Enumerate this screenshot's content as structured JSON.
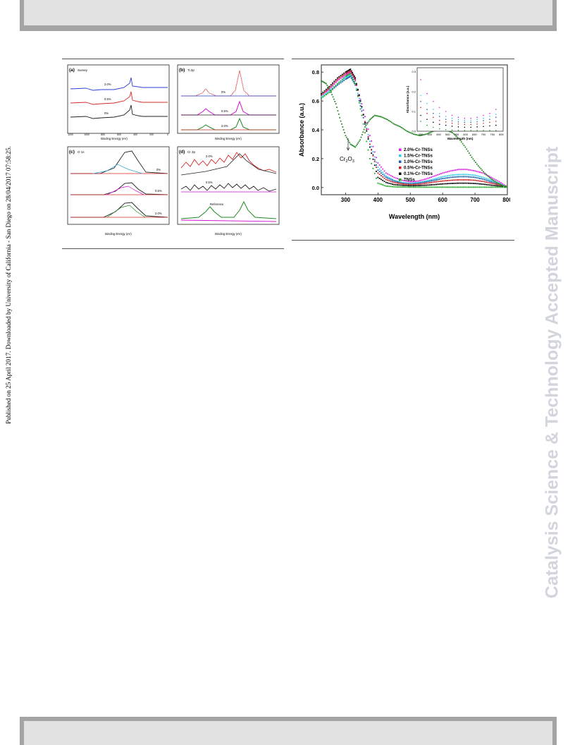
{
  "sidebar_text": "Published on 25 April 2017. Downloaded by University of California - San Diego on 28/04/2017 07:58:25.",
  "watermark": "Catalysis Science & Technology Accepted Manuscript",
  "figure_left": {
    "panel_a": {
      "label": "(a)",
      "title": "Survey",
      "xlabel": "Binding Energy (eV)",
      "ylabel": "Intensity (a.u.)",
      "xticks": [
        "1200",
        "1000",
        "800",
        "600",
        "400",
        "200",
        "0"
      ],
      "curves": [
        "2.0%",
        "0.5%",
        "0%"
      ]
    },
    "panel_b": {
      "label": "(b)",
      "title": "Ti 2p",
      "xlabel": "Binding Energy (eV)",
      "ylabel": "Intensity (a.u.)",
      "xticks": [
        "470",
        "468",
        "466",
        "464",
        "462",
        "460",
        "458",
        "456"
      ],
      "curves": [
        "0%",
        "0.5%",
        "2.0%"
      ]
    },
    "panel_c": {
      "label": "(c)",
      "title": "O 1s",
      "xlabel": "Binding Energy (eV)",
      "ylabel": "Intensity (a.u.)",
      "xticks": [
        "534",
        "533",
        "532",
        "531",
        "530",
        "529",
        "528",
        "527"
      ],
      "curves": [
        "0%",
        "0.5%",
        "2.0%"
      ]
    },
    "panel_d": {
      "label": "(d)",
      "title": "Cr 2p",
      "xlabel": "Binding Energy (eV)",
      "ylabel": "Intensity (a.u.)",
      "xticks": [
        "590",
        "585",
        "580",
        "575",
        "570"
      ],
      "curves": [
        "2.0%",
        "0.5%",
        "Reference"
      ]
    }
  },
  "chart_data": {
    "type": "scatter",
    "xlabel": "Wavelength (nm)",
    "ylabel": "Absorbance (a.u.)",
    "xlim": [
      225,
      800
    ],
    "ylim": [
      -0.05,
      0.85
    ],
    "xticks": [
      300,
      400,
      500,
      600,
      700,
      800
    ],
    "yticks": [
      0.0,
      0.2,
      0.4,
      0.6,
      0.8
    ],
    "annotation": "Cr2O3",
    "legend_position": "center-right",
    "series": [
      {
        "name": "2.0%-Cr-TNSs",
        "color": "#e020e0",
        "x": [
          225,
          250,
          275,
          300,
          315,
          330,
          350,
          375,
          400,
          425,
          450,
          475,
          500,
          525,
          550,
          575,
          600,
          625,
          650,
          675,
          700,
          725,
          750,
          775,
          800
        ],
        "y": [
          0.64,
          0.68,
          0.74,
          0.78,
          0.8,
          0.74,
          0.58,
          0.36,
          0.17,
          0.1,
          0.07,
          0.05,
          0.04,
          0.045,
          0.06,
          0.08,
          0.1,
          0.115,
          0.125,
          0.125,
          0.115,
          0.1,
          0.07,
          0.04,
          0.005
        ]
      },
      {
        "name": "1.5%-Cr-TNSs",
        "color": "#33ccee",
        "x": [
          225,
          250,
          275,
          300,
          315,
          330,
          350,
          375,
          400,
          425,
          450,
          475,
          500,
          525,
          550,
          575,
          600,
          625,
          650,
          675,
          700,
          725,
          750,
          775,
          800
        ],
        "y": [
          0.63,
          0.67,
          0.72,
          0.76,
          0.78,
          0.72,
          0.55,
          0.32,
          0.14,
          0.08,
          0.05,
          0.035,
          0.03,
          0.035,
          0.045,
          0.06,
          0.075,
          0.085,
          0.09,
          0.09,
          0.085,
          0.07,
          0.05,
          0.03,
          0.0
        ]
      },
      {
        "name": "1.0%-Cr-TNSs",
        "color": "#1a5fa8",
        "x": [
          225,
          250,
          275,
          300,
          315,
          330,
          350,
          375,
          400,
          425,
          450,
          475,
          500,
          525,
          550,
          575,
          600,
          625,
          650,
          675,
          700,
          725,
          750,
          775,
          800
        ],
        "y": [
          0.62,
          0.66,
          0.71,
          0.75,
          0.77,
          0.71,
          0.53,
          0.3,
          0.12,
          0.07,
          0.045,
          0.03,
          0.025,
          0.03,
          0.04,
          0.05,
          0.062,
          0.07,
          0.075,
          0.075,
          0.07,
          0.058,
          0.04,
          0.022,
          0.0
        ]
      },
      {
        "name": "0.5%-Cr-TNSs",
        "color": "#cc2222",
        "x": [
          225,
          250,
          275,
          300,
          315,
          330,
          350,
          375,
          400,
          425,
          450,
          475,
          500,
          525,
          550,
          575,
          600,
          625,
          650,
          675,
          700,
          725,
          750,
          775,
          800
        ],
        "y": [
          0.64,
          0.69,
          0.75,
          0.79,
          0.81,
          0.75,
          0.56,
          0.3,
          0.1,
          0.055,
          0.035,
          0.025,
          0.02,
          0.022,
          0.03,
          0.038,
          0.045,
          0.05,
          0.053,
          0.053,
          0.05,
          0.042,
          0.03,
          0.018,
          0.0
        ]
      },
      {
        "name": "0.1%-Cr-TNSs",
        "color": "#000000",
        "x": [
          225,
          250,
          275,
          300,
          315,
          330,
          350,
          375,
          400,
          425,
          450,
          475,
          500,
          525,
          550,
          575,
          600,
          625,
          650,
          675,
          700,
          725,
          750,
          775,
          800
        ],
        "y": [
          0.65,
          0.7,
          0.76,
          0.8,
          0.82,
          0.76,
          0.56,
          0.28,
          0.07,
          0.035,
          0.02,
          0.015,
          0.012,
          0.013,
          0.016,
          0.02,
          0.025,
          0.028,
          0.03,
          0.03,
          0.028,
          0.023,
          0.016,
          0.01,
          0.0
        ]
      },
      {
        "name": "TNSs",
        "color": "#22aa22",
        "x": [
          225,
          250,
          275,
          300,
          315,
          330,
          350,
          375,
          400,
          425,
          450,
          475,
          500,
          525,
          550,
          575,
          600,
          625,
          650,
          675,
          700,
          725,
          750,
          775,
          800
        ],
        "y": [
          0.62,
          0.66,
          0.72,
          0.77,
          0.79,
          0.72,
          0.5,
          0.2,
          0.03,
          0.01,
          0.005,
          0.003,
          0.002,
          0.002,
          0.002,
          0.002,
          0.002,
          0.002,
          0.002,
          0.002,
          0.002,
          0.002,
          0.002,
          0.002,
          0.002
        ]
      },
      {
        "name": "",
        "color": "#2e8b2e",
        "x": [
          225,
          240,
          255,
          270,
          285,
          300,
          315,
          330,
          345,
          360,
          375,
          390,
          410,
          430,
          450,
          470,
          490,
          510,
          530,
          550,
          570,
          590,
          610,
          630,
          650,
          670,
          690,
          710,
          730,
          750,
          770,
          790,
          800
        ],
        "y": [
          0.74,
          0.72,
          0.66,
          0.58,
          0.46,
          0.36,
          0.3,
          0.28,
          0.33,
          0.42,
          0.47,
          0.5,
          0.49,
          0.47,
          0.44,
          0.42,
          0.39,
          0.37,
          0.36,
          0.37,
          0.39,
          0.4,
          0.4,
          0.38,
          0.34,
          0.28,
          0.21,
          0.15,
          0.1,
          0.06,
          0.03,
          0.01,
          0.005
        ]
      }
    ],
    "inset": {
      "xlabel": "Wavelength (nm)",
      "ylabel": "Absorbance (a.u.)",
      "xticks": [
        350,
        400,
        450,
        500,
        550,
        600,
        650,
        700,
        750,
        800
      ],
      "yticks": [
        0.0,
        0.1,
        0.2,
        0.3
      ],
      "series_y": [
        [
          0.26,
          0.19,
          0.15,
          0.12,
          0.1,
          0.08,
          0.07,
          0.065,
          0.065,
          0.07,
          0.08,
          0.09,
          0.11
        ],
        [
          0.18,
          0.14,
          0.11,
          0.09,
          0.075,
          0.065,
          0.058,
          0.055,
          0.055,
          0.06,
          0.065,
          0.075,
          0.085
        ],
        [
          0.15,
          0.11,
          0.09,
          0.075,
          0.06,
          0.052,
          0.047,
          0.045,
          0.045,
          0.048,
          0.053,
          0.06,
          0.07
        ],
        [
          0.12,
          0.09,
          0.07,
          0.055,
          0.047,
          0.04,
          0.036,
          0.034,
          0.034,
          0.036,
          0.04,
          0.045,
          0.05
        ],
        [
          0.08,
          0.06,
          0.045,
          0.035,
          0.03,
          0.025,
          0.022,
          0.02,
          0.02,
          0.022,
          0.024,
          0.027,
          0.03
        ],
        [
          0.05,
          0.03,
          0.02,
          0.012,
          0.008,
          0.006,
          0.005,
          0.004,
          0.004,
          0.004,
          0.004,
          0.004,
          0.004
        ]
      ],
      "x": [
        350,
        385,
        420,
        455,
        490,
        525,
        560,
        595,
        630,
        665,
        700,
        735,
        770
      ]
    }
  }
}
